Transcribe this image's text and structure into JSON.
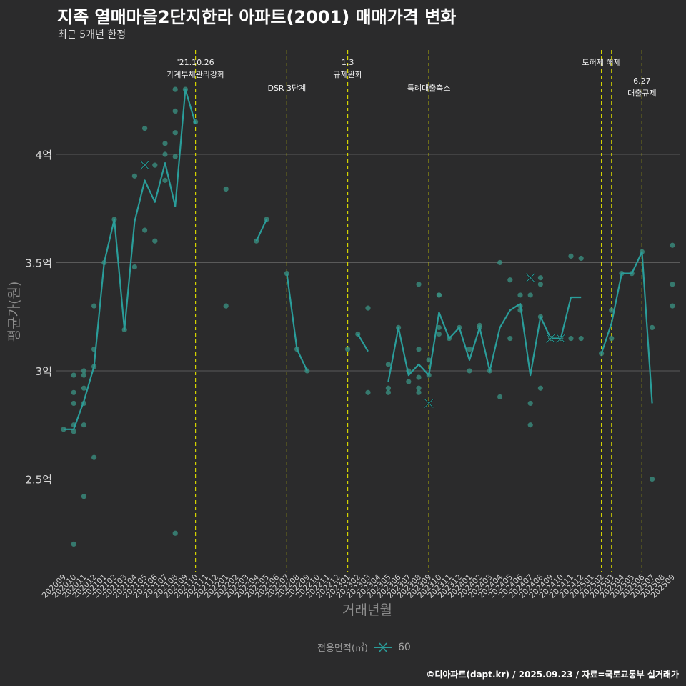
{
  "header": {
    "title": "지족 열매마을2단지한라 아파트(2001) 매매가격 변화",
    "subtitle": "최근 5개년 한정"
  },
  "footer": {
    "credit": "©디아파트(dapt.kr) / 2025.09.23 / 자료=국토교통부 실거래가"
  },
  "legend": {
    "title": "전용면적(㎡)",
    "value": "60"
  },
  "colors": {
    "background": "#2b2b2c",
    "line": "#2a9d9a",
    "point": "#3a8f82",
    "event_line": "#d4d400",
    "grid": "#5a5a5a",
    "text": "#dddddd"
  },
  "chart_data": {
    "type": "line",
    "title": "지족 열매마을2단지한라 아파트(2001) 매매가격 변화",
    "xlabel": "거래년월",
    "ylabel": "평균가(원)",
    "ylim": [
      2.1,
      4.3
    ],
    "grid": true,
    "legend_position": "bottom",
    "categories": [
      "202009",
      "202010",
      "202011",
      "202012",
      "202101",
      "202102",
      "202103",
      "202104",
      "202105",
      "202106",
      "202107",
      "202108",
      "202109",
      "202110",
      "202111",
      "202112",
      "202201",
      "202202",
      "202203",
      "202204",
      "202205",
      "202206",
      "202207",
      "202208",
      "202209",
      "202210",
      "202211",
      "202212",
      "202301",
      "202302",
      "202303",
      "202304",
      "202305",
      "202306",
      "202307",
      "202308",
      "202309",
      "202310",
      "202311",
      "202312",
      "202401",
      "202402",
      "202403",
      "202404",
      "202405",
      "202406",
      "202407",
      "202408",
      "202409",
      "202410",
      "202411",
      "202412",
      "202501",
      "202502",
      "202503",
      "202504",
      "202505",
      "202506",
      "202507",
      "202508",
      "202509"
    ],
    "y_ticks": [
      {
        "value": 2.5,
        "label": "2.5억"
      },
      {
        "value": 3.0,
        "label": "3억"
      },
      {
        "value": 3.5,
        "label": "3.5억"
      },
      {
        "value": 4.0,
        "label": "4억"
      }
    ],
    "series": [
      {
        "name": "60",
        "segments": [
          [
            [
              0,
              2.73
            ],
            [
              1,
              2.73
            ],
            [
              2,
              2.86
            ],
            [
              3,
              3.02
            ],
            [
              4,
              3.5
            ],
            [
              5,
              3.7
            ],
            [
              6,
              3.19
            ],
            [
              7,
              3.69
            ],
            [
              8,
              3.88
            ],
            [
              9,
              3.78
            ],
            [
              10,
              3.96
            ],
            [
              11,
              3.76
            ],
            [
              12,
              4.3
            ],
            [
              13,
              4.14
            ]
          ],
          [
            [
              19,
              3.6
            ],
            [
              20,
              3.7
            ]
          ],
          [
            [
              22,
              3.45
            ],
            [
              23,
              3.1
            ],
            [
              24,
              3.0
            ]
          ],
          [
            [
              29,
              3.17
            ],
            [
              30,
              3.09
            ]
          ],
          [
            [
              32,
              2.95
            ],
            [
              33,
              3.2
            ],
            [
              34,
              2.98
            ],
            [
              35,
              3.03
            ],
            [
              36,
              2.98
            ],
            [
              37,
              3.27
            ],
            [
              38,
              3.15
            ],
            [
              39,
              3.2
            ],
            [
              40,
              3.05
            ],
            [
              41,
              3.2
            ],
            [
              42,
              3.0
            ],
            [
              43,
              3.2
            ],
            [
              44,
              3.28
            ],
            [
              45,
              3.31
            ],
            [
              46,
              2.98
            ],
            [
              47,
              3.25
            ],
            [
              48,
              3.15
            ],
            [
              49,
              3.15
            ],
            [
              50,
              3.34
            ],
            [
              51,
              3.34
            ]
          ],
          [
            [
              53,
              3.08
            ],
            [
              54,
              3.22
            ],
            [
              55,
              3.45
            ],
            [
              56,
              3.45
            ],
            [
              57,
              3.55
            ],
            [
              58,
              2.85
            ]
          ]
        ]
      }
    ],
    "points": [
      [
        0,
        2.73
      ],
      [
        1,
        2.2
      ],
      [
        1,
        2.72
      ],
      [
        1,
        2.75
      ],
      [
        1,
        2.85
      ],
      [
        1,
        2.9
      ],
      [
        1,
        2.98
      ],
      [
        2,
        2.42
      ],
      [
        2,
        2.75
      ],
      [
        2,
        2.85
      ],
      [
        2,
        2.92
      ],
      [
        2,
        2.98
      ],
      [
        2,
        3.0
      ],
      [
        3,
        2.6
      ],
      [
        3,
        3.02
      ],
      [
        3,
        3.1
      ],
      [
        3,
        3.3
      ],
      [
        4,
        3.5
      ],
      [
        5,
        3.7
      ],
      [
        6,
        3.19
      ],
      [
        7,
        3.48
      ],
      [
        7,
        3.9
      ],
      [
        8,
        3.65
      ],
      [
        8,
        4.12
      ],
      [
        9,
        3.6
      ],
      [
        9,
        3.95
      ],
      [
        10,
        3.88
      ],
      [
        10,
        4.0
      ],
      [
        10,
        4.05
      ],
      [
        11,
        2.25
      ],
      [
        11,
        3.99
      ],
      [
        11,
        4.1
      ],
      [
        11,
        4.2
      ],
      [
        11,
        4.3
      ],
      [
        12,
        4.3
      ],
      [
        13,
        4.15
      ],
      [
        16,
        3.3
      ],
      [
        16,
        3.84
      ],
      [
        19,
        3.6
      ],
      [
        20,
        3.7
      ],
      [
        22,
        3.45
      ],
      [
        23,
        3.1
      ],
      [
        24,
        3.0
      ],
      [
        28,
        3.1
      ],
      [
        29,
        3.17
      ],
      [
        30,
        2.9
      ],
      [
        30,
        3.29
      ],
      [
        32,
        2.9
      ],
      [
        32,
        2.92
      ],
      [
        32,
        3.03
      ],
      [
        33,
        3.2
      ],
      [
        34,
        2.95
      ],
      [
        34,
        3.0
      ],
      [
        35,
        2.9
      ],
      [
        35,
        2.92
      ],
      [
        35,
        2.97
      ],
      [
        35,
        3.1
      ],
      [
        35,
        3.4
      ],
      [
        36,
        2.98
      ],
      [
        36,
        3.05
      ],
      [
        37,
        3.17
      ],
      [
        37,
        3.2
      ],
      [
        37,
        3.35
      ],
      [
        37,
        3.35
      ],
      [
        38,
        3.15
      ],
      [
        39,
        3.2
      ],
      [
        40,
        3.0
      ],
      [
        40,
        3.1
      ],
      [
        41,
        3.2
      ],
      [
        41,
        3.21
      ],
      [
        42,
        3.0
      ],
      [
        43,
        2.88
      ],
      [
        43,
        3.5
      ],
      [
        44,
        3.15
      ],
      [
        44,
        3.42
      ],
      [
        45,
        3.28
      ],
      [
        45,
        3.3
      ],
      [
        45,
        3.35
      ],
      [
        46,
        2.75
      ],
      [
        46,
        2.85
      ],
      [
        46,
        3.35
      ],
      [
        47,
        2.92
      ],
      [
        47,
        3.25
      ],
      [
        47,
        3.4
      ],
      [
        47,
        3.43
      ],
      [
        48,
        3.15
      ],
      [
        49,
        3.15
      ],
      [
        50,
        3.15
      ],
      [
        50,
        3.53
      ],
      [
        51,
        3.15
      ],
      [
        51,
        3.52
      ],
      [
        53,
        3.08
      ],
      [
        54,
        3.15
      ],
      [
        54,
        3.28
      ],
      [
        55,
        3.45
      ],
      [
        56,
        3.45
      ],
      [
        57,
        3.55
      ],
      [
        58,
        2.5
      ],
      [
        58,
        3.2
      ],
      [
        60,
        3.3
      ],
      [
        60,
        3.4
      ],
      [
        60,
        3.58
      ]
    ],
    "x_marks": [
      [
        8,
        3.95
      ],
      [
        36,
        2.85
      ],
      [
        46,
        3.43
      ],
      [
        48,
        3.15
      ],
      [
        49,
        3.15
      ]
    ],
    "events": [
      {
        "x": 13,
        "lines": [
          "'21.10.26",
          "가계부채관리강화"
        ],
        "row": 0
      },
      {
        "x": 22,
        "lines": [
          "DSR 3단계"
        ],
        "row": 1
      },
      {
        "x": 28,
        "lines": [
          "1.3",
          "규제완화"
        ],
        "row": 0
      },
      {
        "x": 36,
        "lines": [
          "특례대출축소"
        ],
        "row": 1
      },
      {
        "x": 53,
        "lines": [
          "토허제 해제"
        ],
        "row": 0
      },
      {
        "x": 54,
        "lines": [],
        "row": 0
      },
      {
        "x": 57,
        "lines": [
          "6.27",
          "대출규제"
        ],
        "row": 2
      }
    ]
  }
}
